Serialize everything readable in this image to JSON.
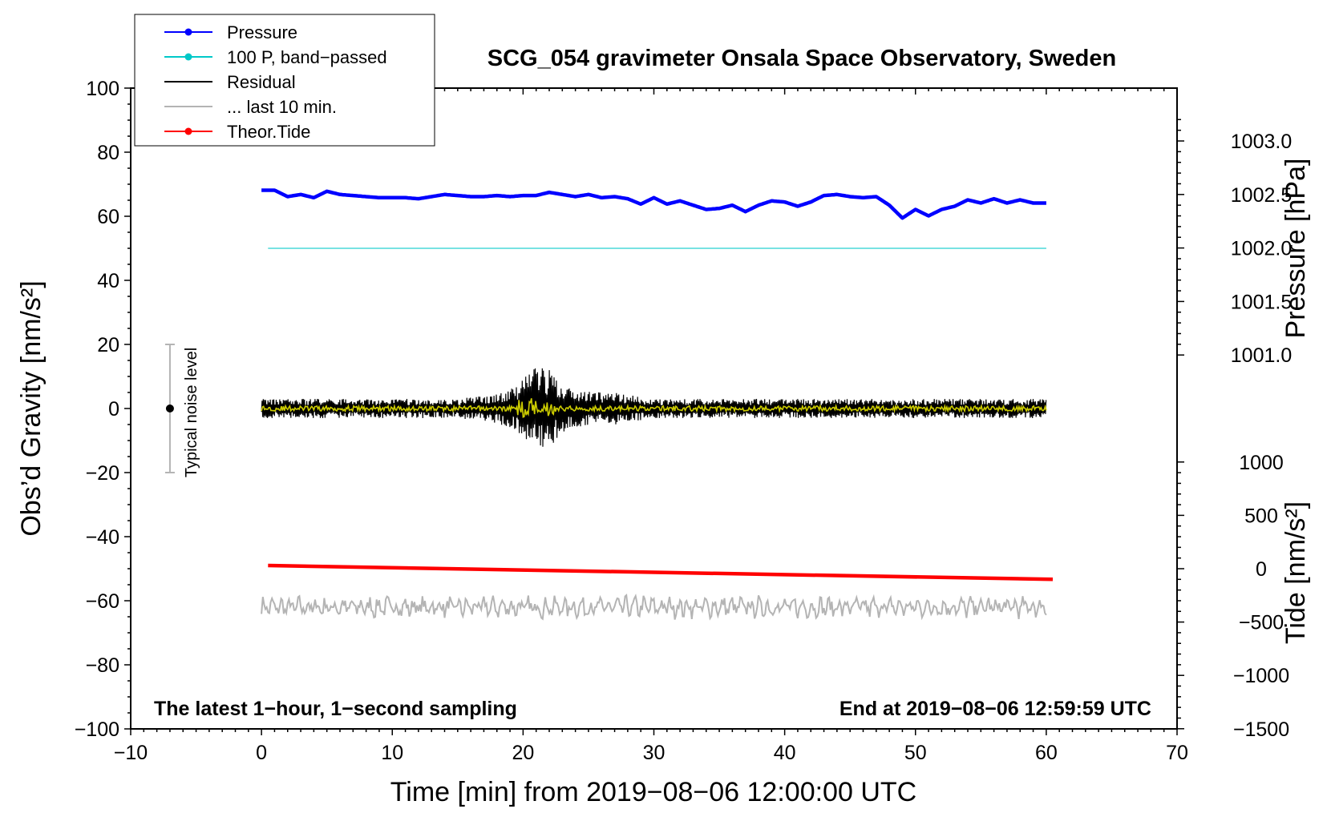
{
  "chart_data": {
    "type": "line",
    "title": "SCG_054 gravimeter Onsala Space Observatory, Sweden",
    "xlabel": "Time [min] from 2019−08−06 12:00:00 UTC",
    "ylabel_left": "Obs’d Gravity [nm/s²]",
    "ylabel_right_pressure": "Pressure [hPa]",
    "ylabel_right_tide": "Tide [nm/s²]",
    "xlim": [
      -10,
      70
    ],
    "ylim": [
      -100,
      100
    ],
    "x_ticks": [
      {
        "value": -10,
        "label": "−10"
      },
      {
        "value": 0,
        "label": "0"
      },
      {
        "value": 10,
        "label": "10"
      },
      {
        "value": 20,
        "label": "20"
      },
      {
        "value": 30,
        "label": "30"
      },
      {
        "value": 40,
        "label": "40"
      },
      {
        "value": 50,
        "label": "50"
      },
      {
        "value": 60,
        "label": "60"
      },
      {
        "value": 70,
        "label": "70"
      }
    ],
    "y_ticks": [
      {
        "value": 100,
        "label": "100"
      },
      {
        "value": 80,
        "label": "80"
      },
      {
        "value": 60,
        "label": "60"
      },
      {
        "value": 40,
        "label": "40"
      },
      {
        "value": 20,
        "label": "20"
      },
      {
        "value": 0,
        "label": "0"
      },
      {
        "value": -20,
        "label": "−20"
      },
      {
        "value": -40,
        "label": "−40"
      },
      {
        "value": -60,
        "label": "−60"
      },
      {
        "value": -80,
        "label": "−80"
      },
      {
        "value": -100,
        "label": "−100"
      }
    ],
    "pressure_axis": {
      "ticks": [
        {
          "value": 1003.0,
          "label": "1003.0"
        },
        {
          "value": 1002.5,
          "label": "1002.5"
        },
        {
          "value": 1002.0,
          "label": "1002.0"
        },
        {
          "value": 1001.5,
          "label": "1001.5"
        },
        {
          "value": 1001.0,
          "label": "1001.0"
        }
      ],
      "gravity_at_1003": 83.5,
      "gravity_per_hpa": 33.4
    },
    "tide_axis": {
      "ticks": [
        {
          "value": 1000,
          "label": "1000"
        },
        {
          "value": 500,
          "label": "500"
        },
        {
          "value": 0,
          "label": "0"
        },
        {
          "value": -500,
          "label": "−500"
        },
        {
          "value": -1000,
          "label": "−1000"
        },
        {
          "value": -1500,
          "label": "−1500"
        }
      ],
      "gravity_at_0": -50.0,
      "gravity_per_unit": 0.0333
    },
    "legend": [
      {
        "label": "Pressure",
        "color": "#0000ff",
        "marker": true
      },
      {
        "label": "100 P, band−passed",
        "color": "#00c8c8",
        "marker": true
      },
      {
        "label": "Residual",
        "color": "#000000",
        "marker": false
      },
      {
        "label": "... last 10 min.",
        "color": "#b4b4b4",
        "marker": false
      },
      {
        "label": "Theor.Tide",
        "color": "#ff0000",
        "marker": true
      }
    ],
    "series": [
      {
        "name": "Pressure",
        "color": "#0000ff",
        "axis": "pressure",
        "x": [
          0,
          1,
          2,
          3,
          4,
          5,
          6,
          7,
          8,
          9,
          10,
          11,
          12,
          13,
          14,
          15,
          16,
          17,
          18,
          19,
          20,
          21,
          22,
          23,
          24,
          25,
          26,
          27,
          28,
          29,
          30,
          31,
          32,
          33,
          34,
          35,
          36,
          37,
          38,
          39,
          40,
          41,
          42,
          43,
          44,
          45,
          46,
          47,
          48,
          49,
          50,
          51,
          52,
          53,
          54,
          55,
          56,
          57,
          58,
          59,
          60
        ],
        "values": [
          1002.54,
          1002.54,
          1002.48,
          1002.5,
          1002.47,
          1002.53,
          1002.5,
          1002.49,
          1002.48,
          1002.47,
          1002.47,
          1002.47,
          1002.46,
          1002.48,
          1002.5,
          1002.49,
          1002.48,
          1002.48,
          1002.49,
          1002.48,
          1002.49,
          1002.49,
          1002.52,
          1002.5,
          1002.48,
          1002.5,
          1002.47,
          1002.48,
          1002.46,
          1002.41,
          1002.47,
          1002.41,
          1002.44,
          1002.4,
          1002.36,
          1002.37,
          1002.4,
          1002.34,
          1002.4,
          1002.44,
          1002.43,
          1002.39,
          1002.43,
          1002.49,
          1002.5,
          1002.48,
          1002.47,
          1002.48,
          1002.4,
          1002.28,
          1002.36,
          1002.3,
          1002.36,
          1002.39,
          1002.45,
          1002.42,
          1002.46,
          1002.42,
          1002.45,
          1002.42,
          1002.42
        ]
      },
      {
        "name": "100 P, band−passed",
        "color": "#00c8c8",
        "axis": "gravity",
        "x": [
          0.5,
          60
        ],
        "values": [
          50,
          50
        ]
      },
      {
        "name": "Residual",
        "color": "#000000",
        "axis": "gravity",
        "x": [
          0,
          5,
          10,
          15,
          17,
          19,
          20,
          20.5,
          21,
          21.5,
          22,
          23,
          25,
          27,
          30,
          35,
          40,
          45,
          50,
          55,
          60
        ],
        "values": [
          2,
          -1,
          1,
          -2,
          3,
          -4,
          8,
          -12,
          14,
          -16,
          10,
          -6,
          3,
          4,
          -2,
          2,
          -1,
          1,
          -2,
          2,
          -1
        ],
        "envelope": {
          "x": [
            0,
            10,
            15,
            17,
            19,
            20,
            21,
            22,
            23,
            24,
            26,
            27,
            30,
            40,
            50,
            60
          ],
          "amplitude": [
            3,
            3,
            3,
            4,
            6,
            9,
            14,
            12,
            8,
            6,
            5,
            5,
            3,
            3,
            3,
            3
          ]
        }
      },
      {
        "name": "Residual (smoothed)",
        "color": "#cccc00",
        "axis": "gravity",
        "x": [
          0,
          10,
          20,
          21,
          22,
          30,
          40,
          50,
          60
        ],
        "values": [
          0,
          0,
          0,
          1,
          0,
          0,
          0,
          0,
          0
        ]
      },
      {
        "name": "... last 10 min.",
        "color": "#b4b4b4",
        "axis": "gravity",
        "x": [
          0,
          10,
          20,
          30,
          40,
          50,
          60
        ],
        "values": [
          -62,
          -62,
          -62,
          -62,
          -62,
          -62,
          -62
        ],
        "amplitude": 3
      },
      {
        "name": "Theor.Tide",
        "color": "#ff0000",
        "axis": "tide",
        "x": [
          0.5,
          60.5
        ],
        "values": [
          30,
          -100
        ]
      }
    ],
    "noise_bar": {
      "x": -7,
      "low": -20,
      "high": 20,
      "center": 0,
      "label": "Typical noise level"
    },
    "annotations": [
      {
        "text": "The latest 1−hour, 1−second sampling",
        "position": "bottom-left"
      },
      {
        "text": "End at 2019−08−06 12:59:59 UTC",
        "position": "bottom-right"
      }
    ]
  }
}
